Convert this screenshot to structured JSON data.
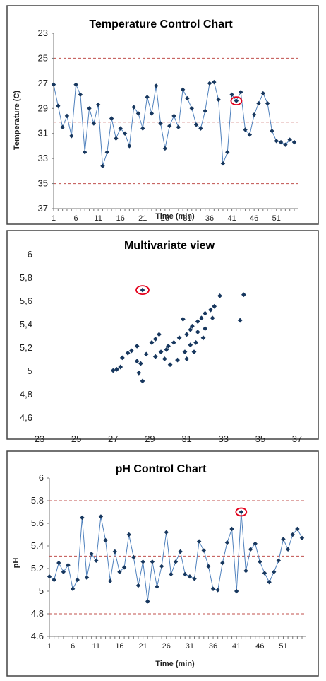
{
  "chart_data": [
    {
      "type": "line",
      "title": "Temperature Control Chart",
      "xlabel": "Time (min)",
      "ylabel": "Temperature (C)",
      "ylim": [
        23,
        37
      ],
      "y_reversed": true,
      "y_ticks": [
        "23",
        "25",
        "27",
        "29",
        "31",
        "33",
        "35",
        "37"
      ],
      "x_ticks": [
        "1",
        "6",
        "11",
        "16",
        "21",
        "26",
        "31",
        "36",
        "41",
        "46",
        "51"
      ],
      "control_lines": [
        25,
        30.1,
        35
      ],
      "line_color": "#4f81bd",
      "control_color": "#c0504d",
      "highlight_color": "#e3001b",
      "highlight_index": 41,
      "x": [
        1,
        2,
        3,
        4,
        5,
        6,
        7,
        8,
        9,
        10,
        11,
        12,
        13,
        14,
        15,
        16,
        17,
        18,
        19,
        20,
        21,
        22,
        23,
        24,
        25,
        26,
        27,
        28,
        29,
        30,
        31,
        32,
        33,
        34,
        35,
        36,
        37,
        38,
        39,
        40,
        41,
        42,
        43,
        44,
        45,
        46,
        47,
        48,
        49,
        50,
        51,
        52,
        53,
        54,
        55
      ],
      "values": [
        27.1,
        28.8,
        30.5,
        29.6,
        31.2,
        27.1,
        27.9,
        32.5,
        29.0,
        30.2,
        28.7,
        33.6,
        32.5,
        29.8,
        31.4,
        30.6,
        31.0,
        32.0,
        28.9,
        29.4,
        30.6,
        28.1,
        29.4,
        27.2,
        30.2,
        32.2,
        30.4,
        29.6,
        30.5,
        27.5,
        28.2,
        29.0,
        30.3,
        30.6,
        29.2,
        27.0,
        26.9,
        28.3,
        33.4,
        32.5,
        27.9,
        28.4,
        27.7,
        30.7,
        31.1,
        29.5,
        28.6,
        27.8,
        28.6,
        30.8,
        31.6,
        31.7,
        31.9,
        31.5,
        31.7
      ]
    },
    {
      "type": "scatter",
      "title": "Multivariate view",
      "xlim": [
        23,
        37
      ],
      "ylim": [
        4.6,
        6
      ],
      "x_ticks": [
        "23",
        "25",
        "27",
        "29",
        "31",
        "33",
        "35",
        "37"
      ],
      "y_ticks": [
        "4,6",
        "4,8",
        "5",
        "5,2",
        "5,4",
        "5,6",
        "5,8",
        "6"
      ],
      "point_color": "#17375e",
      "highlight_color": "#e3001b",
      "highlight": {
        "x": 28.6,
        "y": 5.69
      },
      "points": [
        [
          27.0,
          5.0
        ],
        [
          27.2,
          5.01
        ],
        [
          27.4,
          5.03
        ],
        [
          27.5,
          5.11
        ],
        [
          27.8,
          5.15
        ],
        [
          28.0,
          5.17
        ],
        [
          28.3,
          5.08
        ],
        [
          28.5,
          5.06
        ],
        [
          28.4,
          4.98
        ],
        [
          28.6,
          4.91
        ],
        [
          28.3,
          5.21
        ],
        [
          28.8,
          5.14
        ],
        [
          29.1,
          5.24
        ],
        [
          29.3,
          5.27
        ],
        [
          29.5,
          5.31
        ],
        [
          29.3,
          5.12
        ],
        [
          29.6,
          5.16
        ],
        [
          29.8,
          5.1
        ],
        [
          30.0,
          5.21
        ],
        [
          30.3,
          5.24
        ],
        [
          30.6,
          5.28
        ],
        [
          30.1,
          5.05
        ],
        [
          30.5,
          5.09
        ],
        [
          31.0,
          5.1
        ],
        [
          31.4,
          5.16
        ],
        [
          31.2,
          5.22
        ],
        [
          31.5,
          5.24
        ],
        [
          31.9,
          5.28
        ],
        [
          31.6,
          5.33
        ],
        [
          32.0,
          5.36
        ],
        [
          31.3,
          5.38
        ],
        [
          31.6,
          5.42
        ],
        [
          31.8,
          5.45
        ],
        [
          32.0,
          5.49
        ],
        [
          32.3,
          5.52
        ],
        [
          32.5,
          5.55
        ],
        [
          32.4,
          5.45
        ],
        [
          32.8,
          5.64
        ],
        [
          33.9,
          5.43
        ],
        [
          34.1,
          5.65
        ],
        [
          31.0,
          5.31
        ],
        [
          31.2,
          5.35
        ],
        [
          30.8,
          5.44
        ],
        [
          29.9,
          5.18
        ],
        [
          30.9,
          5.16
        ],
        [
          28.6,
          5.69
        ]
      ]
    },
    {
      "type": "line",
      "title": "pH Control Chart",
      "xlabel": "Time (min)",
      "ylabel": "pH",
      "ylim": [
        4.6,
        6
      ],
      "y_ticks": [
        "4.6",
        "4.8",
        "5",
        "5.2",
        "5.4",
        "5.6",
        "5.8",
        "6"
      ],
      "x_ticks": [
        "1",
        "6",
        "11",
        "16",
        "21",
        "26",
        "31",
        "36",
        "41",
        "46",
        "51"
      ],
      "control_lines": [
        4.8,
        5.31,
        5.8
      ],
      "line_color": "#4f81bd",
      "control_color": "#c0504d",
      "highlight_color": "#e3001b",
      "highlight_index": 41,
      "x": [
        1,
        2,
        3,
        4,
        5,
        6,
        7,
        8,
        9,
        10,
        11,
        12,
        13,
        14,
        15,
        16,
        17,
        18,
        19,
        20,
        21,
        22,
        23,
        24,
        25,
        26,
        27,
        28,
        29,
        30,
        31,
        32,
        33,
        34,
        35,
        36,
        37,
        38,
        39,
        40,
        41,
        42,
        43,
        44,
        45,
        46,
        47,
        48,
        49,
        50,
        51,
        52,
        53,
        54,
        55
      ],
      "values": [
        5.13,
        5.1,
        5.25,
        5.17,
        5.23,
        5.02,
        5.1,
        5.65,
        5.12,
        5.33,
        5.27,
        5.66,
        5.45,
        5.09,
        5.35,
        5.17,
        5.21,
        5.5,
        5.3,
        5.05,
        5.26,
        4.91,
        5.26,
        5.04,
        5.22,
        5.52,
        5.15,
        5.26,
        5.35,
        5.15,
        5.13,
        5.11,
        5.44,
        5.36,
        5.22,
        5.02,
        5.01,
        5.25,
        5.43,
        5.55,
        5.0,
        5.7,
        5.18,
        5.37,
        5.42,
        5.26,
        5.16,
        5.08,
        5.17,
        5.27,
        5.46,
        5.37,
        5.5,
        5.55,
        5.47
      ]
    }
  ]
}
